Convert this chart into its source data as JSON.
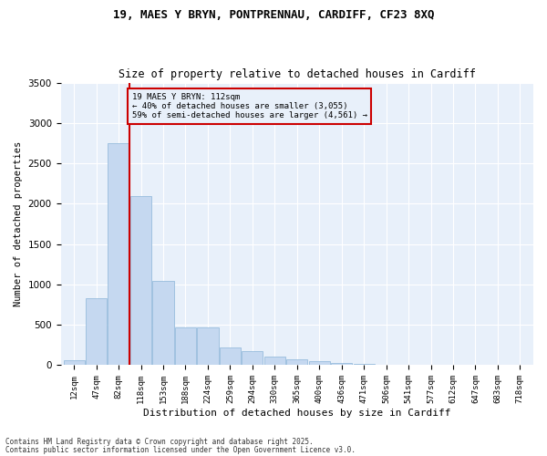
{
  "title1": "19, MAES Y BRYN, PONTPRENNAU, CARDIFF, CF23 8XQ",
  "title2": "Size of property relative to detached houses in Cardiff",
  "xlabel": "Distribution of detached houses by size in Cardiff",
  "ylabel": "Number of detached properties",
  "categories": [
    "12sqm",
    "47sqm",
    "82sqm",
    "118sqm",
    "153sqm",
    "188sqm",
    "224sqm",
    "259sqm",
    "294sqm",
    "330sqm",
    "365sqm",
    "400sqm",
    "436sqm",
    "471sqm",
    "506sqm",
    "541sqm",
    "577sqm",
    "612sqm",
    "647sqm",
    "683sqm",
    "718sqm"
  ],
  "values": [
    55,
    830,
    2750,
    2100,
    1040,
    460,
    460,
    220,
    170,
    100,
    65,
    40,
    20,
    10,
    5,
    3,
    2,
    1,
    1,
    0,
    0
  ],
  "bar_color": "#c5d8f0",
  "bar_edge_color": "#8ab4d8",
  "vline_color": "#cc0000",
  "annotation_title": "19 MAES Y BRYN: 112sqm",
  "annotation_line1": "← 40% of detached houses are smaller (3,055)",
  "annotation_line2": "59% of semi-detached houses are larger (4,561) →",
  "annotation_box_color": "#cc0000",
  "ylim": [
    0,
    3500
  ],
  "yticks": [
    0,
    500,
    1000,
    1500,
    2000,
    2500,
    3000,
    3500
  ],
  "footnote1": "Contains HM Land Registry data © Crown copyright and database right 2025.",
  "footnote2": "Contains public sector information licensed under the Open Government Licence v3.0.",
  "bg_color": "#ffffff",
  "plot_bg_color": "#e8f0fa"
}
